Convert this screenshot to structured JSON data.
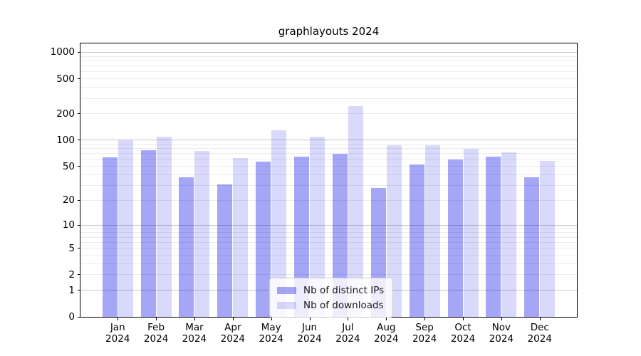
{
  "chart_data": {
    "type": "bar",
    "title": "graphlayouts 2024",
    "categories": [
      "Jan",
      "Feb",
      "Mar",
      "Apr",
      "May",
      "Jun",
      "Jul",
      "Aug",
      "Sep",
      "Oct",
      "Nov",
      "Dec"
    ],
    "x_year_line": "2024",
    "series": [
      {
        "name": "Nb of distinct IPs",
        "color": "rgba(0,0,230,0.35)",
        "values": [
          63,
          77,
          37,
          31,
          57,
          65,
          70,
          28,
          52,
          60,
          65,
          37
        ]
      },
      {
        "name": "Nb of downloads",
        "color": "rgba(0,0,230,0.15)",
        "values": [
          100,
          110,
          75,
          62,
          130,
          110,
          245,
          88,
          87,
          80,
          72,
          58
        ]
      }
    ],
    "yscale": "log1p",
    "ytick_labels": [
      "0",
      "1",
      "2",
      "5",
      "10",
      "20",
      "50",
      "100",
      "200",
      "500",
      "1000"
    ],
    "yticks": [
      0,
      1,
      2,
      5,
      10,
      20,
      50,
      100,
      200,
      500,
      1000
    ],
    "ylim": [
      0,
      1260
    ],
    "grid": true,
    "legend_position": "lower center",
    "xlabel": "",
    "ylabel": ""
  }
}
